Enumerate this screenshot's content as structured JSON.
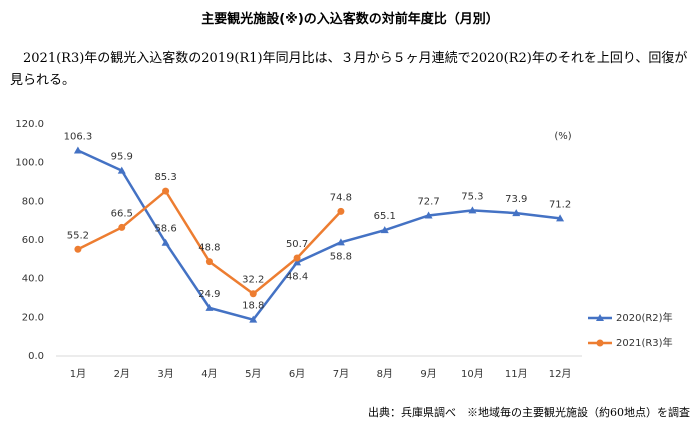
{
  "title": "主要観光施設(※)の入込客数の対前年度比（月別）",
  "paragraph": "2021(R3)年の観光入込客数の2019(R1)年同月比は、３月から５ヶ月連続で2020(R2)年のそれを上回り、回復が見られる。",
  "source": "出典：兵庫県調べ　※地域毎の主要観光施設（約60地点）を調査",
  "chart_data": {
    "type": "line",
    "unit_label": "(%)",
    "categories": [
      "1月",
      "2月",
      "3月",
      "4月",
      "5月",
      "6月",
      "7月",
      "8月",
      "9月",
      "10月",
      "11月",
      "12月"
    ],
    "series": [
      {
        "name": "2020(R2)年",
        "color": "#4472c4",
        "marker": "triangle",
        "values": [
          106.3,
          95.9,
          58.6,
          24.9,
          18.8,
          48.4,
          58.8,
          65.1,
          72.7,
          75.3,
          73.9,
          71.2
        ]
      },
      {
        "name": "2021(R3)年",
        "color": "#ed7d31",
        "marker": "circle",
        "values": [
          55.2,
          66.5,
          85.3,
          48.8,
          32.2,
          50.7,
          74.8,
          null,
          null,
          null,
          null,
          null
        ]
      }
    ],
    "ylim": [
      0,
      120
    ],
    "yticks": [
      {
        "value": 0,
        "label": "0.0"
      },
      {
        "value": 20,
        "label": "20.0"
      },
      {
        "value": 40,
        "label": "40.0"
      },
      {
        "value": 60,
        "label": "60.0"
      },
      {
        "value": 80,
        "label": "80.0"
      },
      {
        "value": 100,
        "label": "100.0"
      },
      {
        "value": 120,
        "label": "120.0"
      }
    ],
    "grid": false,
    "legend": "right"
  }
}
